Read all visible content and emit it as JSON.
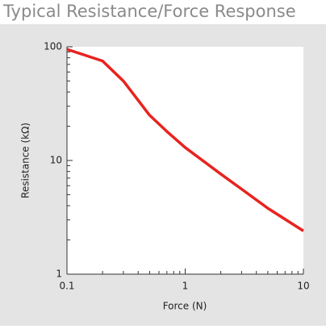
{
  "chart_data": {
    "type": "line",
    "title": "Typical Resistance/Force Response",
    "x_label": "Force (N)",
    "y_label": "Resistance (kΩ)",
    "x": [
      0.1,
      0.2,
      0.3,
      0.5,
      0.7,
      1,
      2,
      3,
      5,
      10
    ],
    "series": [
      {
        "name": "Resistance",
        "color": "#e8231f",
        "values": [
          95,
          75,
          50,
          25,
          18,
          13,
          7.6,
          5.6,
          3.8,
          2.4
        ]
      }
    ],
    "xscale": "log",
    "yscale": "log",
    "xlim": [
      0.1,
      10
    ],
    "ylim": [
      1,
      100
    ],
    "xticks": [
      0.1,
      1,
      10
    ],
    "yticks": [
      1,
      10,
      100
    ],
    "xticks_minor": [
      0.2,
      0.3,
      0.4,
      0.5,
      0.6,
      0.7,
      0.8,
      0.9,
      2,
      3,
      4,
      5,
      6,
      7,
      8,
      9
    ],
    "yticks_minor": [
      2,
      3,
      4,
      5,
      6,
      7,
      8,
      9,
      20,
      30,
      40,
      50,
      60,
      70,
      80,
      90
    ]
  }
}
